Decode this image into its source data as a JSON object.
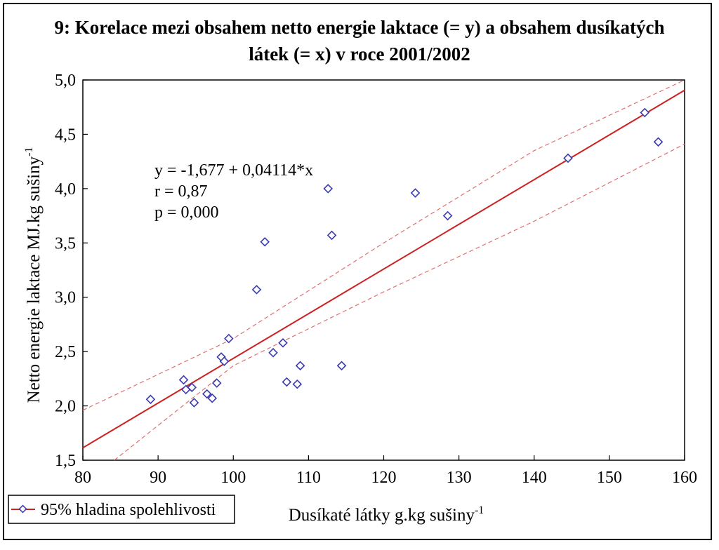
{
  "chart_data": {
    "type": "scatter",
    "title_line1": "9: Korelace mezi obsahem netto energie laktace (= y) a obsahem dusíkatých",
    "title_line2": "látek (= x) v roce 2001/2002",
    "xlabel": "Dusíkaté látky g.kg sušiny",
    "xlabel_sup": "-1",
    "ylabel": "Netto energie laktace MJ.kg sušiny",
    "ylabel_sup": "-1",
    "xlim": [
      80,
      160
    ],
    "ylim": [
      1.5,
      5.0
    ],
    "x_ticks": [
      80,
      90,
      100,
      110,
      120,
      130,
      140,
      150,
      160
    ],
    "x_tick_labels": [
      "80",
      "90",
      "100",
      "110",
      "120",
      "130",
      "140",
      "150",
      "160"
    ],
    "y_ticks": [
      1.5,
      2.0,
      2.5,
      3.0,
      3.5,
      4.0,
      4.5,
      5.0
    ],
    "y_tick_labels": [
      "1,5",
      "2,0",
      "2,5",
      "3,0",
      "3,5",
      "4,0",
      "4,5",
      "5,0"
    ],
    "points": [
      [
        89.0,
        2.06
      ],
      [
        93.4,
        2.24
      ],
      [
        93.7,
        2.15
      ],
      [
        94.5,
        2.17
      ],
      [
        94.8,
        2.03
      ],
      [
        96.5,
        2.11
      ],
      [
        97.2,
        2.07
      ],
      [
        97.8,
        2.21
      ],
      [
        98.4,
        2.45
      ],
      [
        98.8,
        2.41
      ],
      [
        99.4,
        2.62
      ],
      [
        103.1,
        3.07
      ],
      [
        104.2,
        3.51
      ],
      [
        105.3,
        2.49
      ],
      [
        106.6,
        2.58
      ],
      [
        107.1,
        2.22
      ],
      [
        108.5,
        2.2
      ],
      [
        108.9,
        2.37
      ],
      [
        112.6,
        4.0
      ],
      [
        113.1,
        3.57
      ],
      [
        114.4,
        2.37
      ],
      [
        124.2,
        3.96
      ],
      [
        128.5,
        3.75
      ],
      [
        144.5,
        4.28
      ],
      [
        154.7,
        4.7
      ],
      [
        156.5,
        4.43
      ]
    ],
    "regression": {
      "intercept": -1.677,
      "slope": 0.04114
    },
    "confidence_band": {
      "upper": [
        [
          80,
          1.96
        ],
        [
          100,
          2.62
        ],
        [
          120,
          3.5
        ],
        [
          140,
          4.35
        ],
        [
          160,
          5.02
        ]
      ],
      "lower": [
        [
          80,
          1.27
        ],
        [
          100,
          2.37
        ],
        [
          120,
          3.05
        ],
        [
          140,
          3.7
        ],
        [
          160,
          4.41
        ]
      ]
    },
    "annotations": {
      "equation": "y = -1,677 + 0,04114*x",
      "r": "r = 0,87",
      "p": "p = 0,000"
    },
    "legend": {
      "label": "95% hladina spolehlivosti",
      "placement": "bottom-left"
    },
    "colors": {
      "points": "#3a3ab0",
      "line": "#cc2222",
      "band": "#e07070"
    }
  }
}
